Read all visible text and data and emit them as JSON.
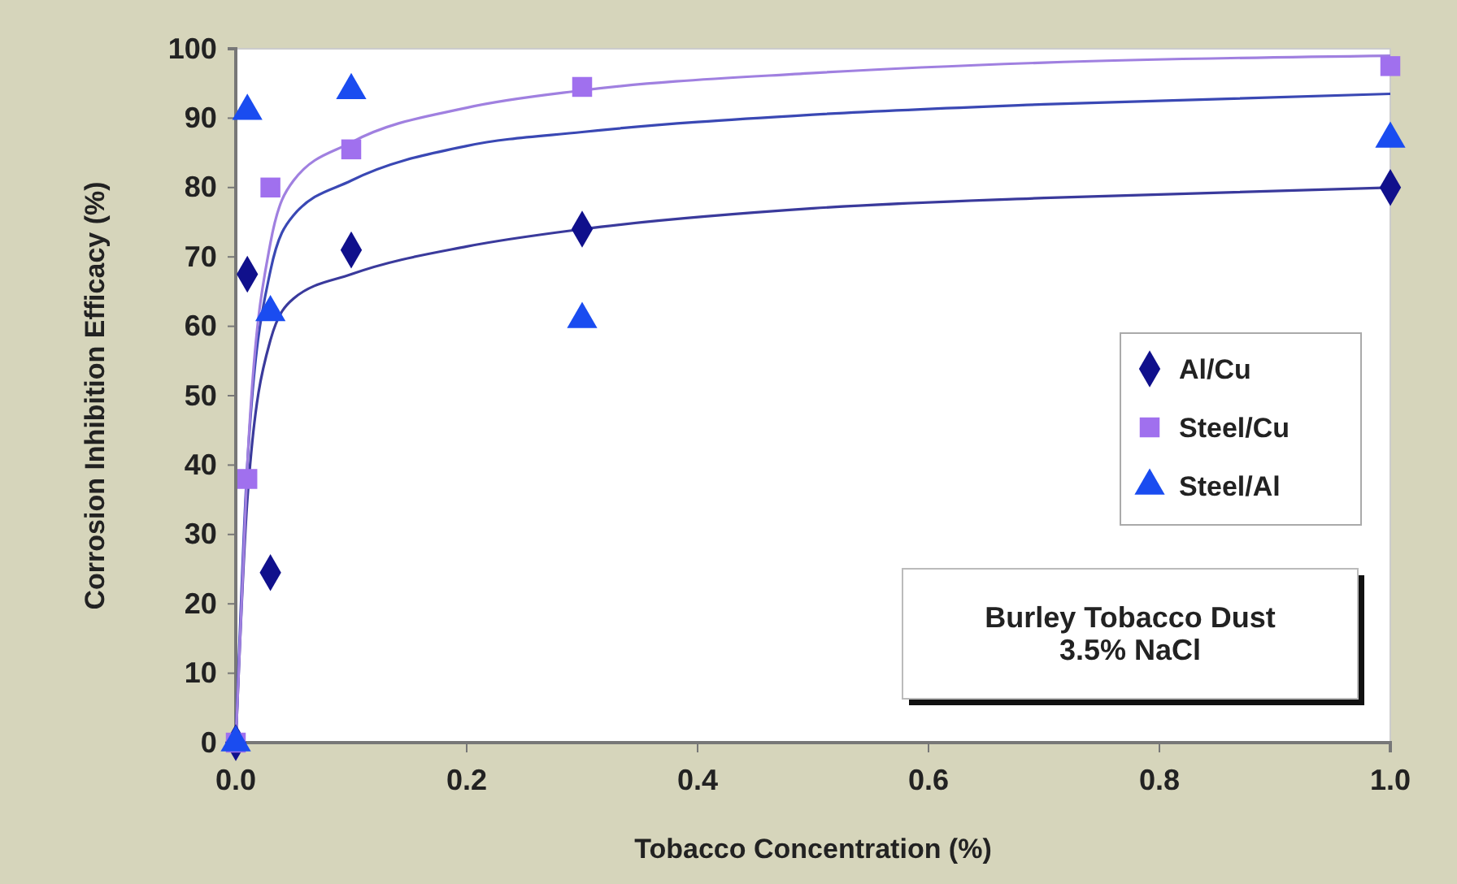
{
  "chart_data": {
    "type": "scatter",
    "xlabel": "Tobacco Concentration (%)",
    "ylabel": "Corrosion Inhibition Efficacy (%)",
    "xlim": [
      0,
      1
    ],
    "xticks": [
      {
        "value": 0,
        "label": "0.0"
      },
      {
        "value": 0.2,
        "label": "0.2"
      },
      {
        "value": 0.4,
        "label": "0.4"
      },
      {
        "value": 0.6,
        "label": "0.6"
      },
      {
        "value": 0.8,
        "label": "0.8"
      },
      {
        "value": 1,
        "label": "1.0"
      }
    ],
    "ylim": [
      0,
      100
    ],
    "yticks": [
      0,
      10,
      20,
      30,
      40,
      50,
      60,
      70,
      80,
      90,
      100
    ],
    "grid": false,
    "legend": "right",
    "annotations": [
      "Burley Tobacco Dust\n3.5% NaCl"
    ],
    "series": [
      {
        "name": "Al/Cu",
        "marker": "diamond",
        "color": "#10108c",
        "x": [
          0,
          0.01,
          0.03,
          0.1,
          0.3,
          1.0
        ],
        "values": [
          0,
          67.5,
          24.5,
          71,
          74,
          80
        ]
      },
      {
        "name": "Steel/Cu",
        "marker": "square",
        "color": "#a070ee",
        "x": [
          0,
          0.01,
          0.03,
          0.1,
          0.3,
          1.0
        ],
        "values": [
          0,
          38,
          80,
          85.5,
          94.5,
          97.5
        ]
      },
      {
        "name": "Steel/Al",
        "marker": "triangle",
        "color": "#1a4cf0",
        "x": [
          0,
          0.01,
          0.03,
          0.1,
          0.3,
          1.0
        ],
        "values": [
          0,
          91,
          62,
          94,
          61,
          87
        ]
      },
      {
        "type": "line",
        "color": "#3a3a9c",
        "x": [
          0,
          0.01,
          0.03,
          0.05,
          0.1,
          0.2,
          0.3,
          0.5,
          0.7,
          1.0
        ],
        "values": [
          0,
          35,
          58,
          64,
          67.5,
          71.5,
          74,
          77,
          78.5,
          80
        ]
      },
      {
        "type": "line",
        "color": "#3a48b4",
        "x": [
          0,
          0.01,
          0.03,
          0.05,
          0.1,
          0.2,
          0.3,
          0.5,
          0.7,
          1.0
        ],
        "values": [
          0,
          40,
          68,
          76,
          81,
          86,
          88,
          90.5,
          92,
          93.5
        ]
      },
      {
        "type": "line",
        "color": "#a080e0",
        "x": [
          0,
          0.01,
          0.03,
          0.05,
          0.1,
          0.2,
          0.3,
          0.5,
          0.7,
          1.0
        ],
        "values": [
          0,
          40,
          72,
          81,
          86.5,
          91.5,
          94,
          96.5,
          98,
          99
        ]
      }
    ]
  }
}
